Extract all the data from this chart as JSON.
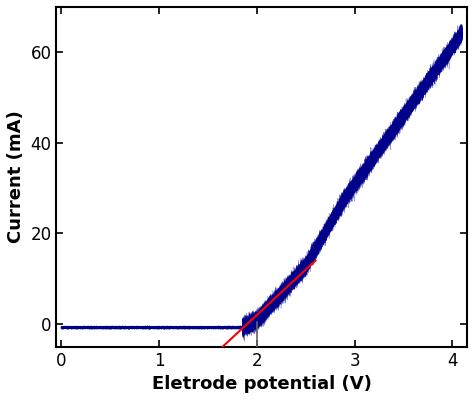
{
  "title": "",
  "xlabel": "Eletrode potential (V)",
  "ylabel": "Current (mA)",
  "xlim": [
    -0.05,
    4.15
  ],
  "ylim": [
    -5,
    70
  ],
  "xticks": [
    0,
    1,
    2,
    3,
    4
  ],
  "yticks": [
    0,
    20,
    40,
    60
  ],
  "curve_color": "#00008B",
  "red_line_color": "red",
  "red_line_x": [
    1.5,
    2.6
  ],
  "red_line_y": [
    -8,
    14
  ],
  "vline_x": 2.0,
  "vline_ymin": -5.5,
  "vline_ymax": 0.5,
  "vline_color": "#666666",
  "background_color": "#ffffff",
  "label_fontsize": 13,
  "tick_fontsize": 12
}
